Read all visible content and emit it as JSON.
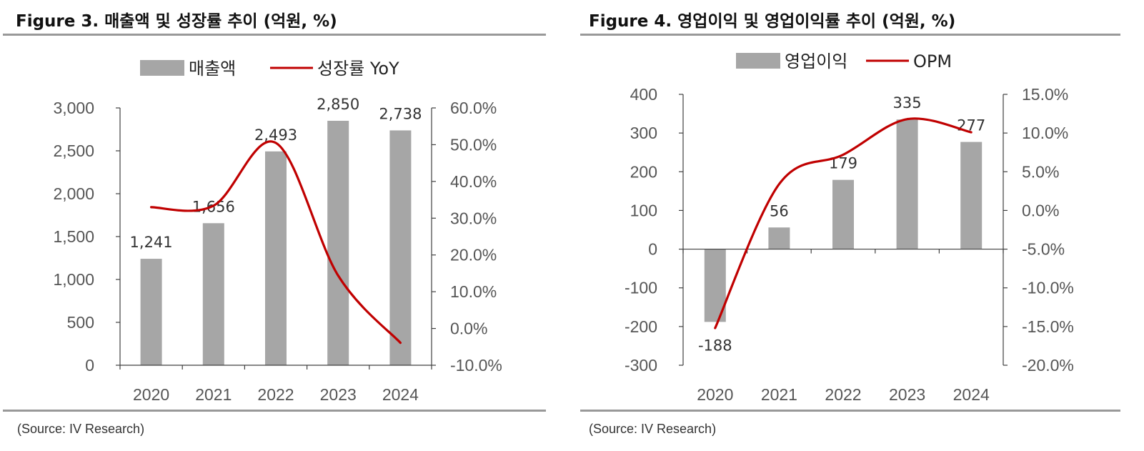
{
  "figures": [
    {
      "title": "Figure 3. 매출액 및 성장률 추이 (억원, %)",
      "source": "(Source: IV Research)",
      "legend": {
        "bar_label": "매출액",
        "line_label": "성장률 YoY"
      },
      "colors": {
        "bar": "#a6a6a6",
        "line": "#c00000",
        "axis": "#404040",
        "rule": "#999999"
      }
    },
    {
      "title": "Figure 4. 영업이익 및 영업이익률 추이 (억원, %)",
      "source": "(Source: IV Research)",
      "legend": {
        "bar_label": "영업이익",
        "line_label": "OPM"
      },
      "colors": {
        "bar": "#a6a6a6",
        "line": "#c00000",
        "axis": "#404040",
        "rule": "#999999"
      }
    }
  ],
  "chart_data": [
    {
      "type": "bar",
      "title": "Figure 3. 매출액 및 성장률 추이 (억원, %)",
      "categories": [
        "2020",
        "2021",
        "2022",
        "2023",
        "2024"
      ],
      "series": [
        {
          "name": "매출액",
          "type": "bar",
          "axis": "left",
          "values": [
            1241,
            1656,
            2493,
            2850,
            2738
          ],
          "data_labels": [
            "1,241",
            "1,656",
            "2,493",
            "2,850",
            "2,738"
          ]
        },
        {
          "name": "성장률 YoY",
          "type": "line",
          "axis": "right",
          "values": [
            33.0,
            33.4,
            50.5,
            14.4,
            -3.9
          ]
        }
      ],
      "y_left": {
        "min": 0,
        "max": 3000,
        "ticks": [
          0,
          500,
          1000,
          1500,
          2000,
          2500,
          3000
        ],
        "tick_labels": [
          "0",
          "500",
          "1,000",
          "1,500",
          "2,000",
          "2,500",
          "3,000"
        ]
      },
      "y_right": {
        "min": -10,
        "max": 60,
        "ticks": [
          -10,
          0,
          10,
          20,
          30,
          40,
          50,
          60
        ],
        "tick_labels": [
          "-10.0%",
          "0.0%",
          "10.0%",
          "20.0%",
          "30.0%",
          "40.0%",
          "50.0%",
          "60.0%"
        ]
      },
      "legend_position": "top",
      "grid": false
    },
    {
      "type": "bar",
      "title": "Figure 4. 영업이익 및 영업이익률 추이 (억원, %)",
      "categories": [
        "2020",
        "2021",
        "2022",
        "2023",
        "2024"
      ],
      "series": [
        {
          "name": "영업이익",
          "type": "bar",
          "axis": "left",
          "values": [
            -188,
            56,
            179,
            335,
            277
          ],
          "data_labels": [
            "-188",
            "56",
            "179",
            "335",
            "277"
          ]
        },
        {
          "name": "OPM",
          "type": "line",
          "axis": "right",
          "values": [
            -15.2,
            3.4,
            7.2,
            11.8,
            10.1
          ]
        }
      ],
      "y_left": {
        "min": -300,
        "max": 400,
        "ticks": [
          -300,
          -200,
          -100,
          0,
          100,
          200,
          300,
          400
        ],
        "tick_labels": [
          "-300",
          "-200",
          "-100",
          "0",
          "100",
          "200",
          "300",
          "400"
        ]
      },
      "y_right": {
        "min": -20,
        "max": 15,
        "ticks": [
          -20,
          -15,
          -10,
          -5,
          0,
          5,
          10,
          15
        ],
        "tick_labels": [
          "-20.0%",
          "-15.0%",
          "-10.0%",
          "-5.0%",
          "0.0%",
          "5.0%",
          "10.0%",
          "15.0%"
        ]
      },
      "legend_position": "top",
      "grid": false
    }
  ]
}
